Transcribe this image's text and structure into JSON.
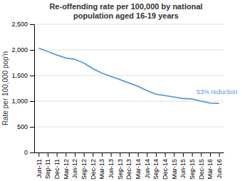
{
  "chart_data": {
    "type": "line",
    "title": "Re-offending rate per 100,000 by national\npopulation aged 16-19 years",
    "ylabel": "Rate per 100,000 pop'n",
    "categories": [
      "Jun-11",
      "Sep-11",
      "Dec-11",
      "Mar-12",
      "Jun-12",
      "Sep-12",
      "Dec-12",
      "Mar-13",
      "Jun-13",
      "Sep-13",
      "Dec-13",
      "Mar-14",
      "Jun-14",
      "Sep-14",
      "Dec-14",
      "Mar-15",
      "Jun-15",
      "Sep-15",
      "Dec-15",
      "Mar-16",
      "Jun-16"
    ],
    "values": [
      2034.4,
      1969.0,
      1901.5,
      1842.2,
      1819.3,
      1743.6,
      1634.0,
      1548.6,
      1484.3,
      1421.5,
      1355.2,
      1290.3,
      1206.1,
      1138.7,
      1108.5,
      1081.8,
      1051.8,
      1043.8,
      1001.6,
      964.6,
      955.2
    ],
    "color": "#5b9bd5",
    "annotations": [
      {
        "text": "53% reduction",
        "x": 17.5,
        "y": 1180,
        "color": "#5b9bd5"
      }
    ],
    "ylim": [
      0,
      2500
    ],
    "yticks": [
      0,
      500,
      {
        "value": 1000,
        "label": "1,000"
      },
      {
        "value": 1500,
        "label": "1,500"
      },
      {
        "value": 2000,
        "label": "2,000"
      },
      {
        "value": 2500,
        "label": "2,500"
      }
    ],
    "grid": true
  }
}
